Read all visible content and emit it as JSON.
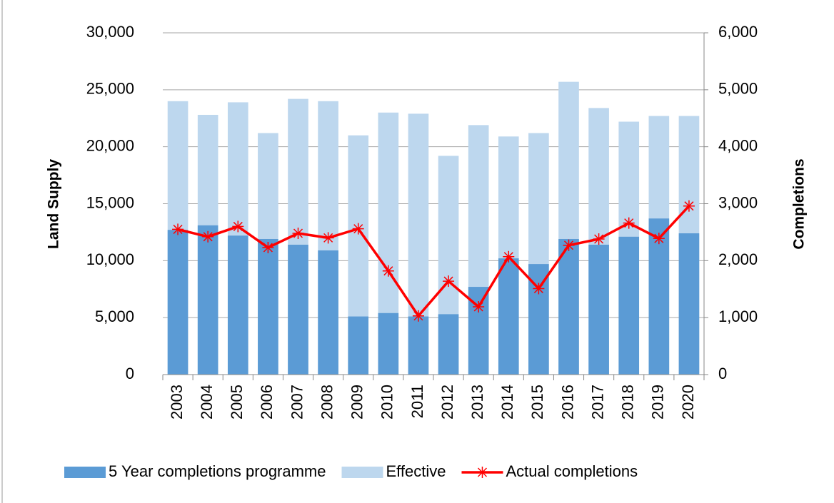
{
  "chart_data": {
    "type": "bar-line",
    "y_label": "Land Supply",
    "y2_label": "Completions",
    "categories": [
      "2003",
      "2004",
      "2005",
      "2006",
      "2007",
      "2008",
      "2009",
      "2010",
      "2011",
      "2012",
      "2013",
      "2014",
      "2015",
      "2016",
      "2017",
      "2018",
      "2019",
      "2020"
    ],
    "series": [
      {
        "name": "5 Year completions programme",
        "color": "#5b9bd5",
        "type": "bar",
        "values": [
          12700,
          13100,
          12200,
          11900,
          11400,
          10900,
          5100,
          5400,
          5100,
          5300,
          7700,
          10200,
          9700,
          11900,
          11400,
          12100,
          13700,
          12400
        ]
      },
      {
        "name": "Effective",
        "color": "#bdd7ee",
        "type": "bar",
        "values": [
          24000,
          22800,
          23900,
          21200,
          24200,
          24000,
          21000,
          23000,
          22900,
          19200,
          21900,
          20900,
          21200,
          25700,
          23400,
          22200,
          22700,
          22700
        ]
      },
      {
        "name": "Actual completions",
        "color": "#ff0000",
        "type": "line",
        "axis": "y2",
        "values": [
          2550,
          2420,
          2600,
          2230,
          2480,
          2400,
          2560,
          1820,
          1030,
          1640,
          1190,
          2070,
          1510,
          2270,
          2380,
          2660,
          2390,
          2960
        ]
      }
    ],
    "ylim": [
      0,
      30000
    ],
    "yticks": [
      0,
      {
        "value": 5000,
        "label": "5,000"
      },
      {
        "value": 10000,
        "label": "10,000"
      },
      {
        "value": 15000,
        "label": "15,000"
      },
      {
        "value": 20000,
        "label": "20,000"
      },
      {
        "value": 25000,
        "label": "25,000"
      },
      {
        "value": 30000,
        "label": "30,000"
      }
    ],
    "y2lim": [
      0,
      6000
    ],
    "y2ticks": [
      0,
      {
        "value": 1000,
        "label": "1,000"
      },
      {
        "value": 2000,
        "label": "2,000"
      },
      {
        "value": 3000,
        "label": "3,000"
      },
      {
        "value": 4000,
        "label": "4,000"
      },
      {
        "value": 5000,
        "label": "5,000"
      },
      {
        "value": 6000,
        "label": "6,000"
      }
    ],
    "grid": true
  }
}
